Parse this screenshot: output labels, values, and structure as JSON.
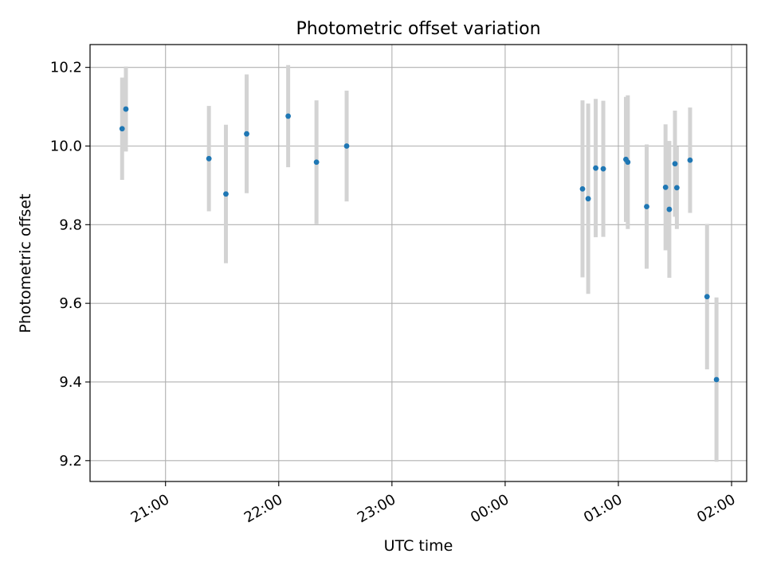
{
  "chart_data": {
    "type": "scatter",
    "title": "Photometric offset variation",
    "xlabel": "UTC time",
    "ylabel": "Photometric offset",
    "x_axis_type": "time",
    "xlim": [
      "20:20",
      "02:08"
    ],
    "ylim": [
      9.147,
      10.258
    ],
    "x_ticks": [
      {
        "value": "21:00",
        "label": "21:00"
      },
      {
        "value": "22:00",
        "label": "22:00"
      },
      {
        "value": "23:00",
        "label": "23:00"
      },
      {
        "value": "00:00",
        "label": "00:00"
      },
      {
        "value": "01:00",
        "label": "01:00"
      },
      {
        "value": "02:00",
        "label": "02:00"
      }
    ],
    "y_ticks": [
      {
        "value": 9.2,
        "label": "9.2"
      },
      {
        "value": 9.4,
        "label": "9.4"
      },
      {
        "value": 9.6,
        "label": "9.6"
      },
      {
        "value": 9.8,
        "label": "9.8"
      },
      {
        "value": 10.0,
        "label": "10.0"
      },
      {
        "value": 10.2,
        "label": "10.2"
      }
    ],
    "grid": true,
    "colors": {
      "marker": "#1f77b4",
      "errorbar": "#d3d3d3",
      "grid": "#b0b0b0"
    },
    "points": [
      {
        "x": "20:37",
        "y": 10.044,
        "err": 0.13
      },
      {
        "x": "20:39",
        "y": 10.094,
        "err": 0.108
      },
      {
        "x": "21:23",
        "y": 9.968,
        "err": 0.134
      },
      {
        "x": "21:32",
        "y": 9.878,
        "err": 0.176
      },
      {
        "x": "21:43",
        "y": 10.031,
        "err": 0.151
      },
      {
        "x": "22:05",
        "y": 10.076,
        "err": 0.13
      },
      {
        "x": "22:20",
        "y": 9.959,
        "err": 0.157
      },
      {
        "x": "22:36",
        "y": 10.0,
        "err": 0.141
      },
      {
        "x": "00:41",
        "y": 9.891,
        "err": 0.225
      },
      {
        "x": "00:44",
        "y": 9.866,
        "err": 0.242
      },
      {
        "x": "00:48",
        "y": 9.944,
        "err": 0.176
      },
      {
        "x": "00:52",
        "y": 9.942,
        "err": 0.173
      },
      {
        "x": "01:04",
        "y": 9.966,
        "err": 0.159
      },
      {
        "x": "01:05",
        "y": 9.959,
        "err": 0.17
      },
      {
        "x": "01:15",
        "y": 9.846,
        "err": 0.158
      },
      {
        "x": "01:25",
        "y": 9.895,
        "err": 0.16
      },
      {
        "x": "01:27",
        "y": 9.839,
        "err": 0.174
      },
      {
        "x": "01:30",
        "y": 9.955,
        "err": 0.135
      },
      {
        "x": "01:31",
        "y": 9.894,
        "err": 0.105
      },
      {
        "x": "01:38",
        "y": 9.964,
        "err": 0.134
      },
      {
        "x": "01:47",
        "y": 9.617,
        "err": 0.185
      },
      {
        "x": "01:52",
        "y": 9.406,
        "err": 0.209
      }
    ]
  }
}
